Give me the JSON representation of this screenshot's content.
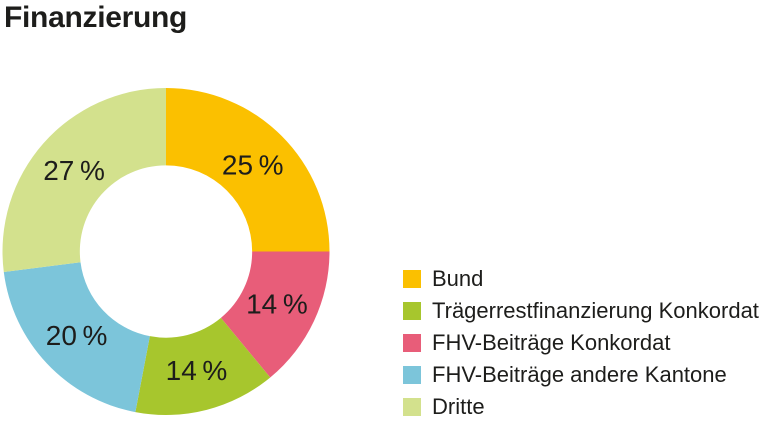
{
  "page": {
    "background": "#ffffff",
    "text_color": "#1d1d1b"
  },
  "title": "Finanzierung",
  "chart_data": {
    "type": "pie",
    "subtype": "donut",
    "title": "Finanzierung",
    "start_angle_deg": 0,
    "direction": "clockwise",
    "inner_radius_ratio": 0.527,
    "label_radius_ratio": 0.75,
    "label_color": "#1d1d1b",
    "legend_position": "right",
    "segments": [
      {
        "label": "Bund",
        "value": 25,
        "display": "25 %",
        "color": "#fbc000"
      },
      {
        "label": "FHV-Beiträge Konkordat",
        "value": 14,
        "display": "14 %",
        "color": "#e85d79"
      },
      {
        "label": "Trägerrestfinanzierung Konkordat",
        "value": 14,
        "display": "14 %",
        "color": "#a7c62d"
      },
      {
        "label": "FHV-Beiträge andere Kantone",
        "value": 20,
        "display": "20 %",
        "color": "#7cc5da"
      },
      {
        "label": "Dritte",
        "value": 27,
        "display": "27 %",
        "color": "#d3e18d"
      }
    ]
  },
  "legend": {
    "items": [
      {
        "label": "Bund",
        "color": "#fbc000"
      },
      {
        "label": "Trägerrestfinanzierung Konkordat",
        "color": "#a7c62d"
      },
      {
        "label": "FHV-Beiträge Konkordat",
        "color": "#e85d79"
      },
      {
        "label": "FHV-Beiträge andere Kantone",
        "color": "#7cc5da"
      },
      {
        "label": "Dritte",
        "color": "#d3e18d"
      }
    ]
  }
}
